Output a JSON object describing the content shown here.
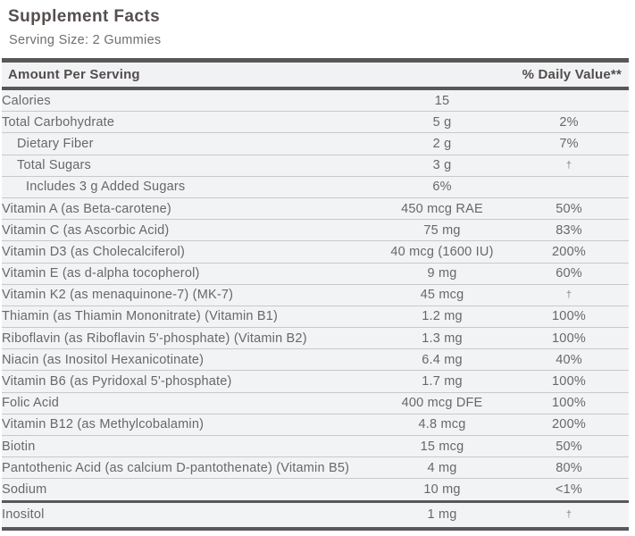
{
  "label": {
    "title": "Supplement Facts",
    "serving_size": "Serving Size: 2 Gummies",
    "columns": {
      "amount_header": "Amount Per Serving",
      "dv_header": "% Daily Value**"
    },
    "rows": [
      {
        "name": "Calories",
        "amount": "15",
        "dv": "",
        "indent": 0
      },
      {
        "name": "Total Carbohydrate",
        "amount": "5 g",
        "dv": "2%",
        "indent": 0
      },
      {
        "name": "Dietary Fiber",
        "amount": "2 g",
        "dv": "7%",
        "indent": 1
      },
      {
        "name": "Total Sugars",
        "amount": "3 g",
        "dv": "†",
        "indent": 1
      },
      {
        "name": "Includes 3 g Added Sugars",
        "amount": "6%",
        "dv": "",
        "indent": 2
      },
      {
        "name": "Vitamin A (as Beta-carotene)",
        "amount": "450 mcg RAE",
        "dv": "50%",
        "indent": 0
      },
      {
        "name": "Vitamin C (as Ascorbic Acid)",
        "amount": "75 mg",
        "dv": "83%",
        "indent": 0
      },
      {
        "name": "Vitamin D3 (as Cholecalciferol)",
        "amount": "40 mcg (1600 IU)",
        "dv": "200%",
        "indent": 0
      },
      {
        "name": "Vitamin E (as d-alpha tocopherol)",
        "amount": "9 mg",
        "dv": "60%",
        "indent": 0
      },
      {
        "name": "Vitamin K2 (as menaquinone-7) (MK-7)",
        "amount": "45 mcg",
        "dv": "†",
        "indent": 0
      },
      {
        "name": "Thiamin (as Thiamin Mononitrate) (Vitamin B1)",
        "amount": "1.2 mg",
        "dv": "100%",
        "indent": 0
      },
      {
        "name": "Riboflavin (as Riboflavin 5'-phosphate) (Vitamin B2)",
        "amount": "1.3 mg",
        "dv": "100%",
        "indent": 0
      },
      {
        "name": "Niacin (as Inositol Hexanicotinate)",
        "amount": "6.4 mg",
        "dv": "40%",
        "indent": 0
      },
      {
        "name": "Vitamin B6 (as Pyridoxal 5'-phosphate)",
        "amount": "1.7 mg",
        "dv": "100%",
        "indent": 0
      },
      {
        "name": "Folic Acid",
        "amount": "400 mcg DFE",
        "dv": "100%",
        "indent": 0
      },
      {
        "name": "Vitamin B12 (as Methylcobalamin)",
        "amount": "4.8 mcg",
        "dv": "200%",
        "indent": 0
      },
      {
        "name": "Biotin",
        "amount": "15 mcg",
        "dv": "50%",
        "indent": 0
      },
      {
        "name": "Pantothenic Acid (as calcium D-pantothenate) (Vitamin B5)",
        "amount": "4 mg",
        "dv": "80%",
        "indent": 0
      },
      {
        "name": "Sodium",
        "amount": "10 mg",
        "dv": "<1%",
        "indent": 0,
        "thick_below": true
      },
      {
        "name": "Inositol",
        "amount": "1 mg",
        "dv": "†",
        "indent": 0
      }
    ],
    "colors": {
      "divider_dark": "#58585a",
      "row_background": "#f2f3f5",
      "row_separator": "#c9c9cd",
      "title_text": "#55504e",
      "body_text": "#68686b"
    }
  }
}
